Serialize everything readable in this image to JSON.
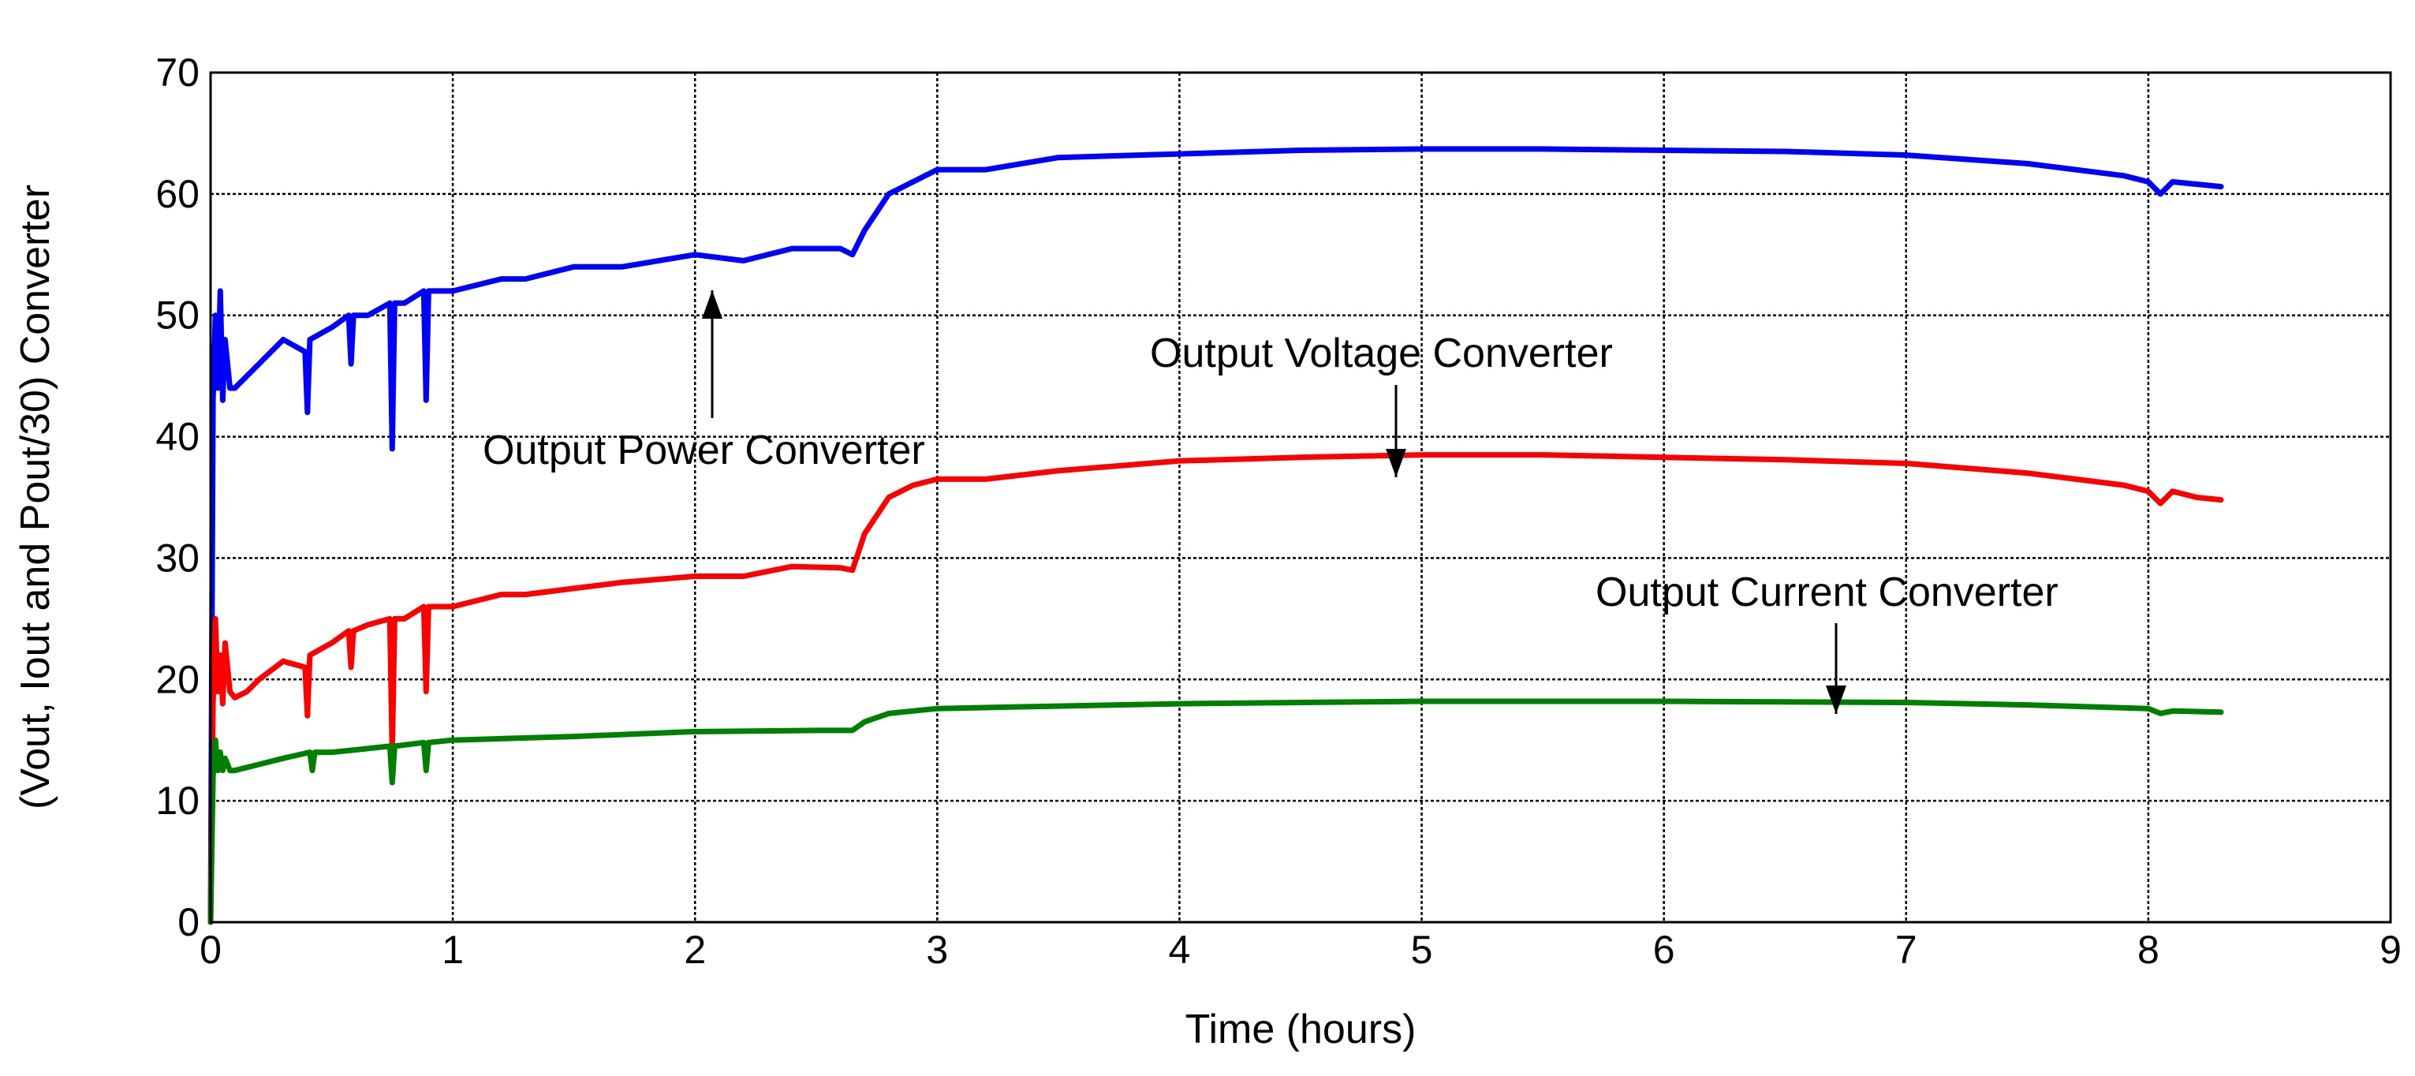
{
  "chart_data": {
    "type": "line",
    "xlabel": "Time (hours)",
    "ylabel": "(Vout, Iout and Pout/30) Converter",
    "xlim": [
      0,
      9
    ],
    "ylim": [
      0,
      70
    ],
    "xticks": [
      "0",
      "1",
      "2",
      "3",
      "4",
      "5",
      "6",
      "7",
      "8",
      "9"
    ],
    "yticks": [
      "0",
      "10",
      "20",
      "30",
      "40",
      "50",
      "60",
      "70"
    ],
    "grid": true,
    "series": [
      {
        "key": "power",
        "color": "#0000ff",
        "x": [
          0,
          0.01,
          0.02,
          0.03,
          0.04,
          0.05,
          0.06,
          0.08,
          0.1,
          0.15,
          0.2,
          0.3,
          0.39,
          0.4,
          0.41,
          0.5,
          0.57,
          0.58,
          0.59,
          0.65,
          0.74,
          0.75,
          0.76,
          0.8,
          0.88,
          0.89,
          0.9,
          1.0,
          1.2,
          1.3,
          1.5,
          1.7,
          2.0,
          2.2,
          2.4,
          2.6,
          2.65,
          2.7,
          2.8,
          2.9,
          3.0,
          3.2,
          3.5,
          4.0,
          4.5,
          5.0,
          5.5,
          6.0,
          6.5,
          7.0,
          7.5,
          7.9,
          8.0,
          8.05,
          8.1,
          8.2,
          8.3
        ],
        "y": [
          0,
          43,
          50,
          44,
          52,
          43,
          48,
          44,
          44,
          45,
          46,
          48,
          47,
          42,
          48,
          49,
          50,
          46,
          50,
          50,
          51,
          39,
          51,
          51,
          52,
          43,
          52,
          52,
          53,
          53,
          54,
          54,
          55,
          54.5,
          55.5,
          55.5,
          55,
          57,
          60,
          61,
          62,
          62,
          63,
          63.3,
          63.6,
          63.7,
          63.7,
          63.6,
          63.5,
          63.2,
          62.5,
          61.5,
          61,
          60,
          61,
          60.8,
          60.6
        ]
      },
      {
        "key": "voltage",
        "color": "#ff0000",
        "x": [
          0,
          0.01,
          0.02,
          0.03,
          0.04,
          0.05,
          0.06,
          0.08,
          0.1,
          0.15,
          0.2,
          0.3,
          0.39,
          0.4,
          0.41,
          0.5,
          0.57,
          0.58,
          0.59,
          0.65,
          0.74,
          0.75,
          0.76,
          0.8,
          0.88,
          0.89,
          0.9,
          1.0,
          1.2,
          1.3,
          1.5,
          1.7,
          2.0,
          2.2,
          2.4,
          2.6,
          2.65,
          2.7,
          2.8,
          2.9,
          3.0,
          3.2,
          3.5,
          4.0,
          4.5,
          5.0,
          5.5,
          6.0,
          6.5,
          7.0,
          7.5,
          7.9,
          8.0,
          8.05,
          8.1,
          8.2,
          8.3
        ],
        "y": [
          0,
          18,
          25,
          19,
          22,
          18,
          23,
          19,
          18.5,
          19,
          20,
          21.5,
          21,
          17,
          22,
          23,
          24,
          21,
          24,
          24.5,
          25,
          14,
          25,
          25,
          26,
          19,
          26,
          26,
          27,
          27,
          27.5,
          28,
          28.5,
          28.5,
          29.3,
          29.2,
          29,
          32,
          35,
          36,
          36.5,
          36.5,
          37.2,
          38,
          38.3,
          38.5,
          38.5,
          38.3,
          38.1,
          37.8,
          37,
          36,
          35.5,
          34.5,
          35.5,
          35,
          34.8
        ]
      },
      {
        "key": "current",
        "color": "#008000",
        "x": [
          0,
          0.01,
          0.02,
          0.03,
          0.04,
          0.05,
          0.06,
          0.08,
          0.1,
          0.2,
          0.3,
          0.41,
          0.42,
          0.43,
          0.5,
          0.6,
          0.74,
          0.75,
          0.76,
          0.88,
          0.89,
          0.9,
          1.0,
          1.5,
          2.0,
          2.5,
          2.65,
          2.7,
          2.8,
          3.0,
          3.5,
          4.0,
          5.0,
          6.0,
          7.0,
          7.5,
          8.0,
          8.05,
          8.1,
          8.3
        ],
        "y": [
          0,
          12,
          15,
          12.5,
          14,
          12.5,
          13.5,
          12.5,
          12.5,
          13,
          13.5,
          14,
          12.5,
          14,
          14,
          14.2,
          14.5,
          11.5,
          14.5,
          14.8,
          12.5,
          14.8,
          15,
          15.3,
          15.7,
          15.8,
          15.8,
          16.5,
          17.2,
          17.6,
          17.8,
          18,
          18.2,
          18.2,
          18.1,
          17.9,
          17.6,
          17.2,
          17.4,
          17.3
        ]
      }
    ],
    "annotations": [
      {
        "key": "power",
        "text": "Output Power Converter"
      },
      {
        "key": "voltage",
        "text": "Output Voltage Converter"
      },
      {
        "key": "current",
        "text": "Output Current Converter"
      }
    ]
  }
}
